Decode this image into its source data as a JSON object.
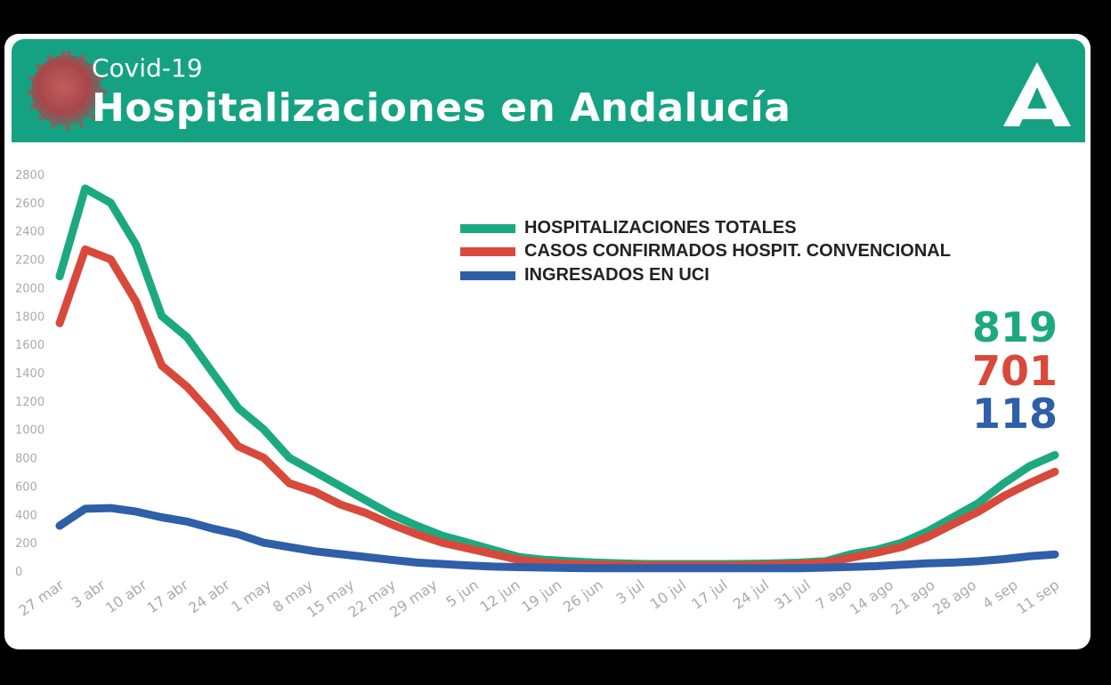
{
  "header": {
    "subtitle": "Covid-19",
    "title": "Hospitalizaciones en Andalucía"
  },
  "colors": {
    "header_bg": "#15a283",
    "green": "#1da97f",
    "red": "#d9493b",
    "blue": "#2e5fa8",
    "axis_text": "#aaaaaa"
  },
  "chart_data": {
    "type": "line",
    "ylim": [
      0,
      2800
    ],
    "yticks": [
      "2800",
      "2600",
      "2400",
      "2200",
      "2000",
      "1800",
      "1600",
      "1400",
      "1200",
      "1000",
      "800",
      "600",
      "400",
      "200",
      "0"
    ],
    "xticks": [
      "27 mar",
      "3 abr",
      "10 abr",
      "17 abr",
      "24 abr",
      "1 may",
      "8 may",
      "15 may",
      "22 may",
      "29 may",
      "5 jun",
      "12 jun",
      "19 jun",
      "26 jun",
      "3 jul",
      "10 jul",
      "17 jul",
      "24 jul",
      "31 jul",
      "7 ago",
      "14 ago",
      "21 ago",
      "28 ago",
      "4 sep",
      "11 sep"
    ],
    "legend": [
      "HOSPITALIZACIONES TOTALES",
      "CASOS CONFIRMADOS HOSPIT. CONVENCIONAL",
      "INGRESADOS EN UCI"
    ],
    "series": [
      {
        "name": "HOSPITALIZACIONES TOTALES",
        "color": "#1da97f",
        "last_label": "819",
        "values": [
          2080,
          2700,
          2600,
          2300,
          1800,
          1650,
          1400,
          1150,
          1000,
          800,
          700,
          600,
          500,
          400,
          320,
          250,
          200,
          150,
          100,
          80,
          70,
          60,
          55,
          50,
          50,
          50,
          50,
          52,
          55,
          60,
          70,
          120,
          150,
          200,
          280,
          380,
          480,
          620,
          740,
          819
        ]
      },
      {
        "name": "CASOS CONFIRMADOS HOSPIT. CONVENCIONAL",
        "color": "#d9493b",
        "last_label": "701",
        "values": [
          1750,
          2270,
          2200,
          1900,
          1450,
          1300,
          1100,
          880,
          800,
          620,
          560,
          470,
          410,
          330,
          260,
          200,
          160,
          120,
          80,
          60,
          50,
          45,
          42,
          40,
          40,
          40,
          40,
          42,
          45,
          50,
          60,
          95,
          130,
          170,
          240,
          330,
          420,
          530,
          620,
          701
        ]
      },
      {
        "name": "INGRESADOS EN UCI",
        "color": "#2e5fa8",
        "last_label": "118",
        "values": [
          320,
          440,
          445,
          420,
          380,
          350,
          300,
          260,
          200,
          170,
          140,
          120,
          100,
          80,
          60,
          50,
          40,
          32,
          28,
          25,
          22,
          20,
          20,
          20,
          20,
          20,
          20,
          20,
          20,
          20,
          25,
          30,
          35,
          45,
          55,
          60,
          70,
          85,
          105,
          118
        ]
      }
    ]
  }
}
